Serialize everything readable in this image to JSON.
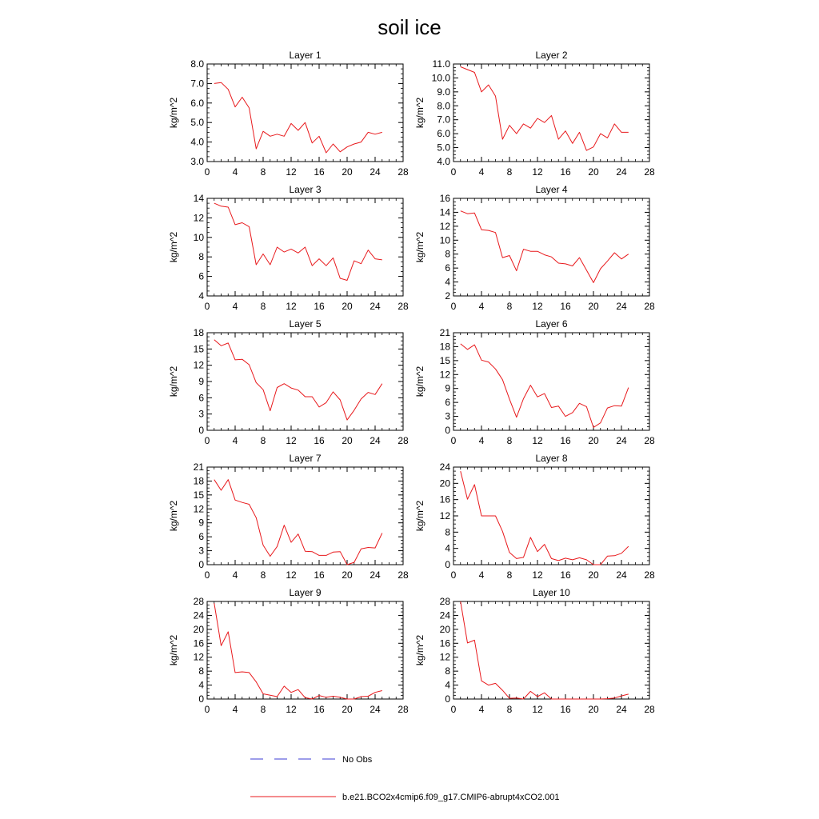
{
  "title": "soil ice",
  "colors": {
    "model": "#e8191c",
    "obs": "#3b3bd6",
    "axis": "#000000"
  },
  "legend": {
    "obs_label": "No Obs",
    "model_label": "b.e21.BCO2x4cmip6.f09_g17.CMIP6-abrupt4xCO2.001"
  },
  "chart_data": [
    {
      "type": "line",
      "title": "Layer 1",
      "ylabel": "kg/m^2",
      "xlim": [
        0,
        28
      ],
      "xticks": [
        0,
        4,
        8,
        12,
        16,
        20,
        24,
        28
      ],
      "ylim": [
        3,
        8
      ],
      "yticks": [
        "3.0",
        "4.0",
        "5.0",
        "6.0",
        "7.0",
        "8.0"
      ],
      "series": [
        {
          "x": [
            1,
            2,
            3,
            4,
            5,
            6,
            7,
            8,
            9,
            10,
            11,
            12,
            13,
            14,
            15,
            16,
            17,
            18,
            19,
            20,
            21,
            22,
            23,
            24,
            25
          ],
          "values": [
            7.0,
            7.05,
            6.7,
            5.8,
            6.3,
            5.75,
            3.65,
            4.55,
            4.3,
            4.4,
            4.3,
            4.95,
            4.6,
            5.0,
            3.95,
            4.3,
            3.45,
            3.9,
            3.5,
            3.75,
            3.9,
            4.0,
            4.5,
            4.4,
            4.5
          ]
        }
      ]
    },
    {
      "type": "line",
      "title": "Layer 2",
      "ylabel": "kg/m^2",
      "xlim": [
        0,
        28
      ],
      "xticks": [
        0,
        4,
        8,
        12,
        16,
        20,
        24,
        28
      ],
      "ylim": [
        4,
        11
      ],
      "yticks": [
        "4.0",
        "5.0",
        "6.0",
        "7.0",
        "8.0",
        "9.0",
        "10.0",
        "11.0"
      ],
      "series": [
        {
          "x": [
            1,
            2,
            3,
            4,
            5,
            6,
            7,
            8,
            9,
            10,
            11,
            12,
            13,
            14,
            15,
            16,
            17,
            18,
            19,
            20,
            21,
            22,
            23,
            24,
            25
          ],
          "values": [
            10.8,
            10.6,
            10.4,
            9.0,
            9.5,
            8.7,
            5.6,
            6.6,
            6.0,
            6.7,
            6.4,
            7.1,
            6.8,
            7.3,
            5.6,
            6.2,
            5.3,
            6.1,
            4.8,
            5.05,
            6.0,
            5.7,
            6.7,
            6.1,
            6.1
          ]
        }
      ]
    },
    {
      "type": "line",
      "title": "Layer 3",
      "ylabel": "kg/m^2",
      "xlim": [
        0,
        28
      ],
      "xticks": [
        0,
        4,
        8,
        12,
        16,
        20,
        24,
        28
      ],
      "ylim": [
        4,
        14
      ],
      "yticks": [
        "4",
        "6",
        "8",
        "10",
        "12",
        "14"
      ],
      "series": [
        {
          "x": [
            1,
            2,
            3,
            4,
            5,
            6,
            7,
            8,
            9,
            10,
            11,
            12,
            13,
            14,
            15,
            16,
            17,
            18,
            19,
            20,
            21,
            22,
            23,
            24,
            25
          ],
          "values": [
            13.5,
            13.2,
            13.1,
            11.3,
            11.5,
            11.1,
            7.2,
            8.3,
            7.2,
            9.0,
            8.5,
            8.8,
            8.4,
            9.0,
            7.1,
            7.8,
            7.1,
            7.9,
            5.8,
            5.6,
            7.6,
            7.3,
            8.7,
            7.8,
            7.7
          ]
        }
      ]
    },
    {
      "type": "line",
      "title": "Layer 4",
      "ylabel": "kg/m^2",
      "xlim": [
        0,
        28
      ],
      "xticks": [
        0,
        4,
        8,
        12,
        16,
        20,
        24,
        28
      ],
      "ylim": [
        2,
        16
      ],
      "yticks": [
        "2",
        "4",
        "6",
        "8",
        "10",
        "12",
        "14",
        "16"
      ],
      "series": [
        {
          "x": [
            1,
            2,
            3,
            4,
            5,
            6,
            7,
            8,
            9,
            10,
            11,
            12,
            13,
            14,
            15,
            16,
            17,
            18,
            19,
            20,
            21,
            22,
            23,
            24,
            25
          ],
          "values": [
            14.2,
            13.8,
            13.9,
            11.5,
            11.4,
            11.1,
            7.5,
            7.8,
            5.6,
            8.7,
            8.4,
            8.4,
            7.9,
            7.6,
            6.7,
            6.6,
            6.3,
            7.5,
            5.7,
            3.9,
            5.9,
            7.0,
            8.2,
            7.3,
            8.0
          ]
        }
      ]
    },
    {
      "type": "line",
      "title": "Layer 5",
      "ylabel": "kg/m^2",
      "xlim": [
        0,
        28
      ],
      "xticks": [
        0,
        4,
        8,
        12,
        16,
        20,
        24,
        28
      ],
      "ylim": [
        0,
        18
      ],
      "yticks": [
        "0",
        "3",
        "6",
        "9",
        "12",
        "15",
        "18"
      ],
      "series": [
        {
          "x": [
            1,
            2,
            3,
            4,
            5,
            6,
            7,
            8,
            9,
            10,
            11,
            12,
            13,
            14,
            15,
            16,
            17,
            18,
            19,
            20,
            21,
            22,
            23,
            24,
            25
          ],
          "values": [
            16.7,
            15.6,
            16.1,
            13.0,
            13.1,
            12.1,
            8.8,
            7.5,
            3.6,
            7.9,
            8.6,
            7.8,
            7.4,
            6.2,
            6.2,
            4.3,
            5.1,
            7.1,
            5.6,
            1.9,
            3.7,
            5.8,
            7.0,
            6.6,
            8.6
          ]
        }
      ]
    },
    {
      "type": "line",
      "title": "Layer 6",
      "ylabel": "kg/m^2",
      "xlim": [
        0,
        28
      ],
      "xticks": [
        0,
        4,
        8,
        12,
        16,
        20,
        24,
        28
      ],
      "ylim": [
        0,
        21
      ],
      "yticks": [
        "0",
        "3",
        "6",
        "9",
        "12",
        "15",
        "18",
        "21"
      ],
      "series": [
        {
          "x": [
            1,
            2,
            3,
            4,
            5,
            6,
            7,
            8,
            9,
            10,
            11,
            12,
            13,
            14,
            15,
            16,
            17,
            18,
            19,
            20,
            21,
            22,
            23,
            24,
            25
          ],
          "values": [
            18.6,
            17.4,
            18.4,
            15.1,
            14.7,
            13.2,
            10.9,
            6.7,
            2.8,
            6.8,
            9.7,
            7.2,
            7.9,
            4.9,
            5.2,
            3.0,
            3.8,
            5.8,
            5.1,
            0.6,
            1.6,
            4.8,
            5.3,
            5.2,
            9.2
          ]
        }
      ]
    },
    {
      "type": "line",
      "title": "Layer 7",
      "ylabel": "kg/m^2",
      "xlim": [
        0,
        28
      ],
      "xticks": [
        0,
        4,
        8,
        12,
        16,
        20,
        24,
        28
      ],
      "ylim": [
        0,
        21
      ],
      "yticks": [
        "0",
        "3",
        "6",
        "9",
        "12",
        "15",
        "18",
        "21"
      ],
      "series": [
        {
          "x": [
            1,
            2,
            3,
            4,
            5,
            6,
            7,
            8,
            9,
            10,
            11,
            12,
            13,
            14,
            15,
            16,
            17,
            18,
            19,
            20,
            21,
            22,
            23,
            24,
            25
          ],
          "values": [
            18.3,
            16.0,
            18.3,
            13.9,
            13.4,
            13.0,
            10.1,
            4.2,
            1.8,
            3.9,
            8.5,
            4.8,
            6.6,
            2.9,
            2.8,
            2.0,
            2.0,
            2.7,
            2.8,
            0.0,
            0.5,
            3.4,
            3.7,
            3.6,
            6.8
          ]
        }
      ]
    },
    {
      "type": "line",
      "title": "Layer 8",
      "ylabel": "kg/m^2",
      "xlim": [
        0,
        28
      ],
      "xticks": [
        0,
        4,
        8,
        12,
        16,
        20,
        24,
        28
      ],
      "ylim": [
        0,
        24
      ],
      "yticks": [
        "0",
        "4",
        "8",
        "12",
        "16",
        "20",
        "24"
      ],
      "series": [
        {
          "x": [
            1,
            2,
            3,
            4,
            5,
            6,
            7,
            8,
            9,
            10,
            11,
            12,
            13,
            14,
            15,
            16,
            17,
            18,
            19,
            20,
            21,
            22,
            23,
            24,
            25
          ],
          "values": [
            23.0,
            16.1,
            19.7,
            12.0,
            12.0,
            12.0,
            8.2,
            3.0,
            1.5,
            1.8,
            6.7,
            3.2,
            5.0,
            1.5,
            1.0,
            1.6,
            1.2,
            1.7,
            1.2,
            0.0,
            0.0,
            2.1,
            2.2,
            2.8,
            4.5
          ]
        }
      ]
    },
    {
      "type": "line",
      "title": "Layer 9",
      "ylabel": "kg/m^2",
      "xlim": [
        0,
        28
      ],
      "xticks": [
        0,
        4,
        8,
        12,
        16,
        20,
        24,
        28
      ],
      "ylim": [
        0,
        28
      ],
      "yticks": [
        "0",
        "4",
        "8",
        "12",
        "16",
        "20",
        "24",
        "28"
      ],
      "series": [
        {
          "x": [
            1,
            2,
            3,
            4,
            5,
            6,
            7,
            8,
            9,
            10,
            11,
            12,
            13,
            14,
            15,
            16,
            17,
            18,
            19,
            20,
            21,
            22,
            23,
            24,
            25
          ],
          "values": [
            27.5,
            15.3,
            19.3,
            7.6,
            7.8,
            7.6,
            4.9,
            1.5,
            1.1,
            0.7,
            3.7,
            1.9,
            2.7,
            0.4,
            0.0,
            1.0,
            0.5,
            0.8,
            0.5,
            0.0,
            0.0,
            0.7,
            0.8,
            1.9,
            2.4
          ]
        }
      ]
    },
    {
      "type": "line",
      "title": "Layer 10",
      "ylabel": "kg/m^2",
      "xlim": [
        0,
        28
      ],
      "xticks": [
        0,
        4,
        8,
        12,
        16,
        20,
        24,
        28
      ],
      "ylim": [
        0,
        28
      ],
      "yticks": [
        "0",
        "4",
        "8",
        "12",
        "16",
        "20",
        "24",
        "28"
      ],
      "series": [
        {
          "x": [
            1,
            2,
            3,
            4,
            5,
            6,
            7,
            8,
            9,
            10,
            11,
            12,
            13,
            14,
            15,
            16,
            17,
            18,
            19,
            20,
            21,
            22,
            23,
            24,
            25
          ],
          "values": [
            28.0,
            16.1,
            16.9,
            5.2,
            4.0,
            4.5,
            2.5,
            0.2,
            0.3,
            0.0,
            2.2,
            0.7,
            1.8,
            0.0,
            0.0,
            0.0,
            0.0,
            0.0,
            0.0,
            0.0,
            0.0,
            0.1,
            0.3,
            0.9,
            1.4
          ]
        }
      ]
    }
  ]
}
